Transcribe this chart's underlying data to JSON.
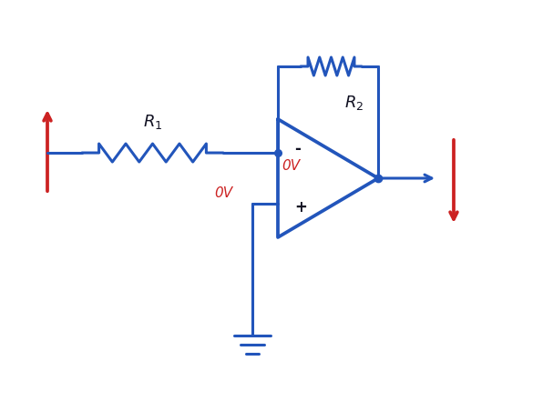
{
  "bg_color": "#ffffff",
  "blue": "#2255bb",
  "red": "#cc2222",
  "dark": "#111122",
  "lw": 2.2,
  "figw": 6.07,
  "figh": 4.41,
  "xlim": [
    0,
    6.07
  ],
  "ylim": [
    0,
    4.41
  ],
  "r1_label": "$R_1$",
  "r2_label": "$R_2$",
  "ov_inv": "0V",
  "ov_noninv": "0V",
  "minus_label": "-",
  "plus_label": "+"
}
